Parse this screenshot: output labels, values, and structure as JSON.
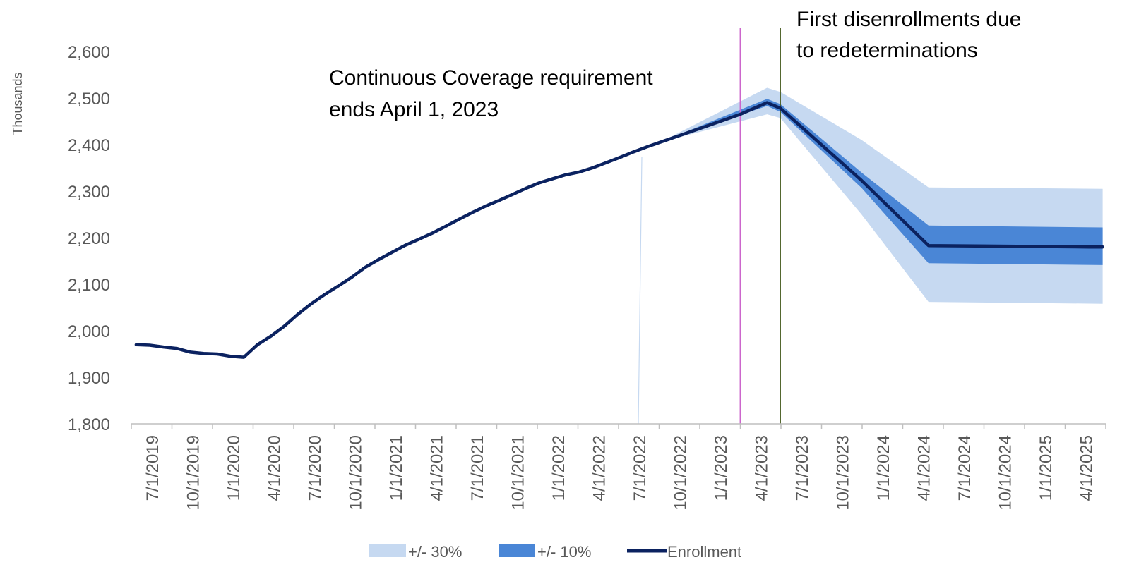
{
  "chart_data": {
    "type": "line",
    "ylabel": "Thousands",
    "ylim": [
      1800,
      2650
    ],
    "yticks": [
      "1,800",
      "1,900",
      "2,000",
      "2,100",
      "2,200",
      "2,300",
      "2,400",
      "2,500",
      "2,600"
    ],
    "ytick_values": [
      1800,
      1900,
      2000,
      2100,
      2200,
      2300,
      2400,
      2500,
      2600
    ],
    "xticks": [
      "7/1/2019",
      "10/1/2019",
      "1/1/2020",
      "4/1/2020",
      "7/1/2020",
      "10/1/2020",
      "1/1/2021",
      "4/1/2021",
      "7/1/2021",
      "10/1/2021",
      "1/1/2022",
      "4/1/2022",
      "7/1/2022",
      "10/1/2022",
      "1/1/2023",
      "4/1/2023",
      "7/1/2023",
      "10/1/2023",
      "1/1/2024",
      "4/1/2024",
      "7/1/2024",
      "10/1/2024",
      "1/1/2025",
      "4/1/2025"
    ],
    "enrollment": {
      "name": "Enrollment",
      "color": "#0b2260",
      "points": [
        [
          "2019-07-01",
          1970
        ],
        [
          "2019-08-01",
          1969
        ],
        [
          "2019-09-01",
          1965
        ],
        [
          "2019-10-01",
          1962
        ],
        [
          "2019-11-01",
          1954
        ],
        [
          "2019-12-01",
          1951
        ],
        [
          "2020-01-01",
          1950
        ],
        [
          "2020-02-01",
          1945
        ],
        [
          "2020-03-01",
          1943
        ],
        [
          "2020-04-01",
          1970
        ],
        [
          "2020-05-01",
          1988
        ],
        [
          "2020-06-01",
          2010
        ],
        [
          "2020-07-01",
          2035
        ],
        [
          "2020-08-01",
          2058
        ],
        [
          "2020-09-01",
          2078
        ],
        [
          "2020-10-01",
          2096
        ],
        [
          "2020-11-01",
          2115
        ],
        [
          "2020-12-01",
          2136
        ],
        [
          "2021-01-01",
          2153
        ],
        [
          "2021-02-01",
          2169
        ],
        [
          "2021-03-01",
          2183
        ],
        [
          "2021-04-01",
          2196
        ],
        [
          "2021-05-01",
          2209
        ],
        [
          "2021-06-01",
          2224
        ],
        [
          "2021-07-01",
          2239
        ],
        [
          "2021-08-01",
          2254
        ],
        [
          "2021-09-01",
          2268
        ],
        [
          "2021-10-01",
          2280
        ],
        [
          "2021-11-01",
          2293
        ],
        [
          "2021-12-01",
          2306
        ],
        [
          "2022-01-01",
          2318
        ],
        [
          "2022-02-01",
          2327
        ],
        [
          "2022-03-01",
          2335
        ],
        [
          "2022-04-01",
          2341
        ],
        [
          "2022-05-01",
          2350
        ],
        [
          "2022-06-01",
          2361
        ],
        [
          "2022-07-01",
          2372
        ],
        [
          "2022-08-01",
          2384
        ],
        [
          "2022-09-01",
          2395
        ],
        [
          "2022-10-01",
          2405
        ],
        [
          "2023-01-01",
          2435
        ],
        [
          "2023-04-01",
          2465
        ],
        [
          "2023-06-01",
          2490
        ],
        [
          "2023-07-01",
          2478
        ],
        [
          "2024-01-01",
          2323
        ],
        [
          "2024-06-01",
          2183
        ],
        [
          "2025-06-01",
          2180
        ],
        [
          "2025-07-01",
          2180
        ]
      ]
    },
    "band_10": {
      "name": "+/- 10%",
      "color": "#4a86d6",
      "points": [
        [
          "2022-10-01",
          2405,
          2405
        ],
        [
          "2023-06-01",
          2483,
          2498
        ],
        [
          "2023-07-01",
          2470,
          2487
        ],
        [
          "2024-01-01",
          2307,
          2340
        ],
        [
          "2024-06-01",
          2145,
          2226
        ],
        [
          "2025-07-01",
          2141,
          2222
        ]
      ]
    },
    "band_30": {
      "name": "+/- 30%",
      "color": "#c6d9f1",
      "points": [
        [
          "2022-10-01",
          2405,
          2405
        ],
        [
          "2023-06-01",
          2465,
          2522
        ],
        [
          "2023-07-01",
          2457,
          2513
        ],
        [
          "2024-01-01",
          2250,
          2410
        ],
        [
          "2024-06-01",
          2062,
          2308
        ],
        [
          "2025-07-01",
          2058,
          2305
        ]
      ]
    },
    "vertical_lines": [
      {
        "date": "2023-04-01",
        "color": "#cc66cc"
      },
      {
        "date": "2023-07-01",
        "color": "#4f6228"
      }
    ],
    "annotations": [
      {
        "id": "ann1",
        "lines": [
          "Continuous Coverage requirement",
          "ends April 1, 2023"
        ]
      },
      {
        "id": "ann2",
        "lines": [
          "First disenrollments due",
          "to redeterminations"
        ]
      }
    ],
    "legend": {
      "placement": "bottom-center",
      "items": [
        {
          "label": "+/- 30%",
          "color": "#c6d9f1",
          "kind": "box"
        },
        {
          "label": "+/- 10%",
          "color": "#4a86d6",
          "kind": "box"
        },
        {
          "label": "Enrollment",
          "color": "#0b2260",
          "kind": "line"
        }
      ]
    }
  }
}
